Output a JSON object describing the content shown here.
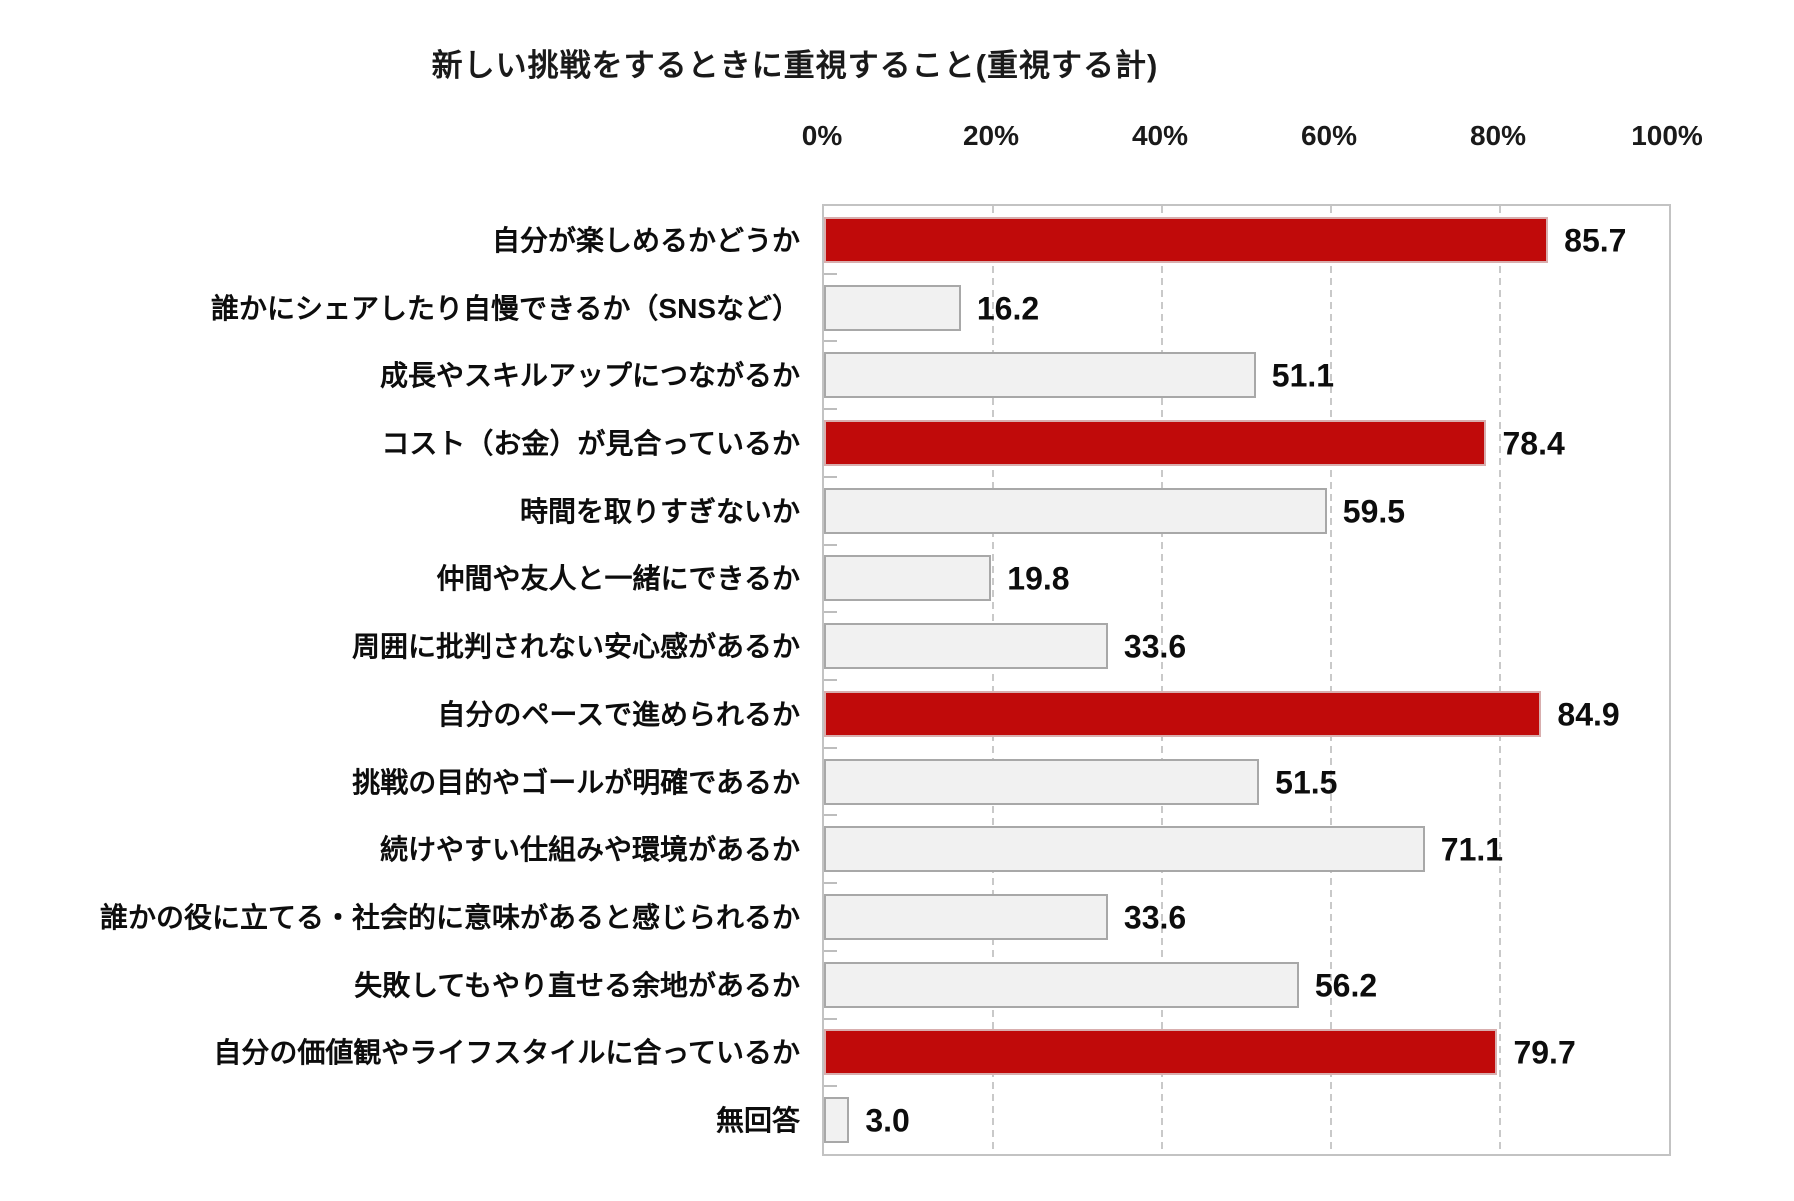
{
  "title": "新しい挑戦をするときに重視すること(重視する計)",
  "colors": {
    "highlight_bar": "#c00a0a",
    "normal_bar_fill": "#f1f1f1",
    "normal_bar_border": "#a8a8a8",
    "gridline": "#c9c9c9",
    "text": "#0d0d0d"
  },
  "chart_data": {
    "type": "bar",
    "orientation": "horizontal",
    "title": "新しい挑戦をするときに重視すること(重視する計)",
    "xlabel": "",
    "ylabel": "",
    "xlim": [
      0,
      100
    ],
    "grid": true,
    "x_ticks": [
      "0%",
      "20%",
      "40%",
      "60%",
      "80%",
      "100%"
    ],
    "x_tick_values": [
      0,
      20,
      40,
      60,
      80,
      100
    ],
    "categories": [
      "自分が楽しめるかどうか",
      "誰かにシェアしたり自慢できるか（SNSなど）",
      "成長やスキルアップにつながるか",
      "コスト（お金）が見合っているか",
      "時間を取りすぎないか",
      "仲間や友人と一緒にできるか",
      "周囲に批判されない安心感があるか",
      "自分のペースで進められるか",
      "挑戦の目的やゴールが明確であるか",
      "続けやすい仕組みや環境があるか",
      "誰かの役に立てる・社会的に意味があると感じられるか",
      "失敗してもやり直せる余地があるか",
      "自分の価値観やライフスタイルに合っているか",
      "無回答"
    ],
    "values": [
      85.7,
      16.2,
      51.1,
      78.4,
      59.5,
      19.8,
      33.6,
      84.9,
      51.5,
      71.1,
      33.6,
      56.2,
      79.7,
      3.0
    ],
    "value_labels": [
      "85.7",
      "16.2",
      "51.1",
      "78.4",
      "59.5",
      "19.8",
      "33.6",
      "84.9",
      "51.5",
      "71.1",
      "33.6",
      "56.2",
      "79.7",
      "3.0"
    ],
    "highlighted": [
      true,
      false,
      false,
      true,
      false,
      false,
      false,
      true,
      false,
      false,
      false,
      false,
      true,
      false
    ]
  }
}
